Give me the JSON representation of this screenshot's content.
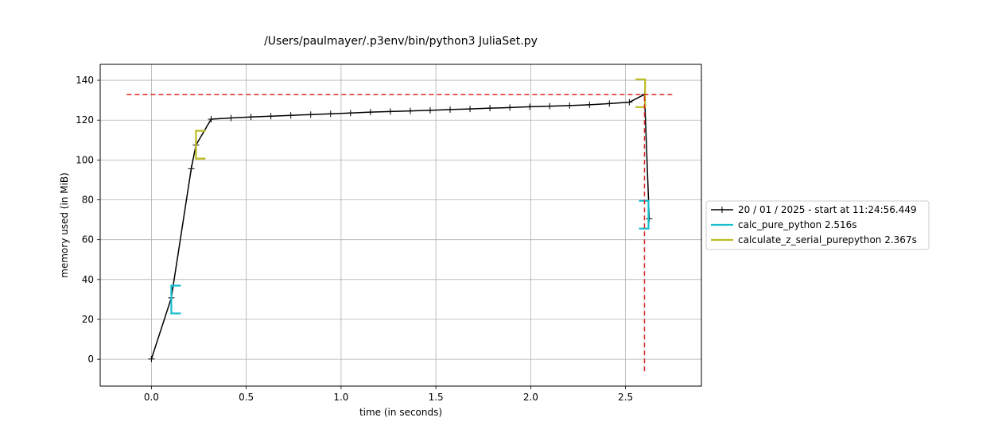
{
  "chart_data": {
    "type": "line",
    "title": "/Users/paulmayer/.p3env/bin/python3 JuliaSet.py",
    "xlabel": "time (in seconds)",
    "ylabel": "memory used (in MiB)",
    "xlim": [
      -0.27,
      2.9
    ],
    "ylim": [
      -13.5,
      148
    ],
    "xticks": [
      0.0,
      0.5,
      1.0,
      1.5,
      2.0,
      2.5
    ],
    "xtick_labels": [
      "0.0",
      "0.5",
      "1.0",
      "1.5",
      "2.0",
      "2.5"
    ],
    "yticks": [
      0,
      20,
      40,
      60,
      80,
      100,
      120,
      140
    ],
    "ytick_labels": [
      "0",
      "20",
      "40",
      "60",
      "80",
      "100",
      "120",
      "140"
    ],
    "grid": true,
    "legend_position": "right",
    "series": [
      {
        "name": "20 / 01 / 2025 - start at 11:24:56.449",
        "color": "#000000",
        "marker": "+",
        "x": [
          0.0,
          0.105,
          0.21,
          0.235,
          0.315,
          0.42,
          0.525,
          0.63,
          0.735,
          0.84,
          0.945,
          1.05,
          1.155,
          1.26,
          1.365,
          1.47,
          1.575,
          1.68,
          1.785,
          1.89,
          1.995,
          2.1,
          2.205,
          2.31,
          2.415,
          2.52,
          2.6,
          2.625
        ],
        "y": [
          0.1,
          30.8,
          95.6,
          107.5,
          120.5,
          121.1,
          121.6,
          122.0,
          122.4,
          122.8,
          123.2,
          123.6,
          124.0,
          124.3,
          124.6,
          124.9,
          125.3,
          125.6,
          126.0,
          126.3,
          126.7,
          127.0,
          127.3,
          127.7,
          128.3,
          129.0,
          132.9,
          70.5
        ]
      }
    ],
    "functions": [
      {
        "name": "calc_pure_python 2.516s",
        "color": "#17becf",
        "start": [
          0.105,
          23.0
        ],
        "end": [
          2.621,
          79.5
        ]
      },
      {
        "name": "calculate_z_serial_purepython 2.367s",
        "color": "#bcbd22",
        "start": [
          0.235,
          100.7
        ],
        "end": [
          2.603,
          140.5
        ]
      }
    ],
    "max_memory_line": {
      "y": 132.9,
      "x_start": -0.13,
      "x_end": 2.76,
      "color": "#d62728"
    },
    "max_time_line": {
      "x": 2.6,
      "y_start": -6.0,
      "y_end": 132.9,
      "color": "#d62728"
    }
  }
}
